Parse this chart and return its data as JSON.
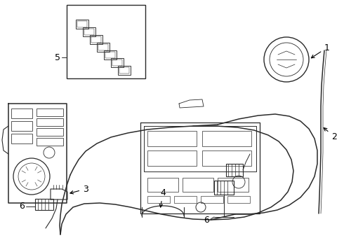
{
  "background": "#ffffff",
  "line_color": "#2a2a2a",
  "label_fontsize": 9,
  "fig_width": 4.9,
  "fig_height": 3.6,
  "dpi": 100
}
